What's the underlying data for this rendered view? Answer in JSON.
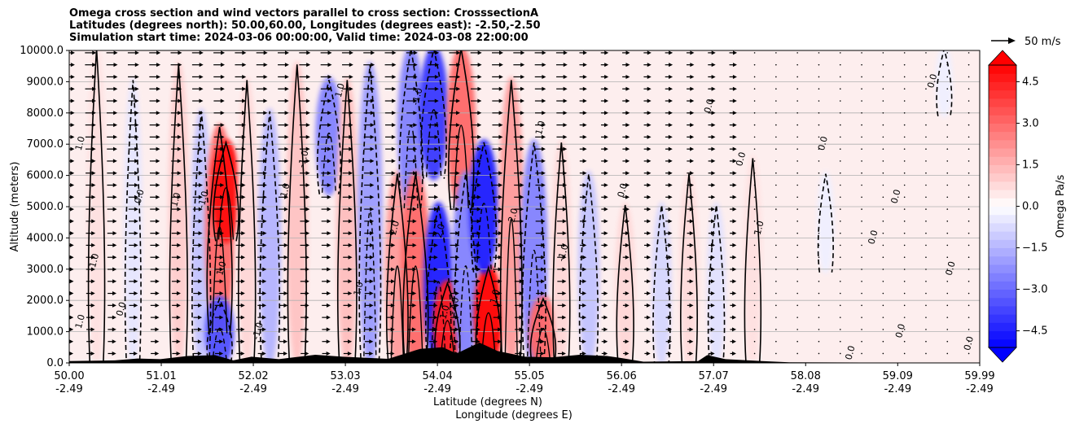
{
  "title_lines": [
    "Omega cross section and wind vectors parallel to cross section: CrosssectionA",
    "Latitudes (degrees north): 50.00,60.00, Longitudes (degrees east): -2.50,-2.50",
    "Simulation start time: 2024-03-06 00:00:00, Valid time: 2024-03-08 22:00:00"
  ],
  "chart_data": {
    "type": "heatmap",
    "title": "Omega cross section and wind vectors parallel to cross section: CrosssectionA",
    "xlabel_lat": "Latitude (degrees N)",
    "xlabel_lon": "Longitude (degrees E)",
    "ylabel": "Altitude (meters)",
    "xlim": [
      50.0,
      59.99
    ],
    "ylim": [
      0,
      10000
    ],
    "x_ticks": [
      {
        "lat": "50.00",
        "lon": "-2.49",
        "value": 50.0
      },
      {
        "lat": "51.01",
        "lon": "-2.49",
        "value": 51.01
      },
      {
        "lat": "52.02",
        "lon": "-2.49",
        "value": 52.02
      },
      {
        "lat": "53.03",
        "lon": "-2.49",
        "value": 53.03
      },
      {
        "lat": "54.04",
        "lon": "-2.49",
        "value": 54.04
      },
      {
        "lat": "55.05",
        "lon": "-2.49",
        "value": 55.05
      },
      {
        "lat": "56.06",
        "lon": "-2.49",
        "value": 56.06
      },
      {
        "lat": "57.07",
        "lon": "-2.49",
        "value": 57.07
      },
      {
        "lat": "58.08",
        "lon": "-2.49",
        "value": 58.08
      },
      {
        "lat": "59.09",
        "lon": "-2.49",
        "value": 59.09
      },
      {
        "lat": "59.99",
        "lon": "-2.49",
        "value": 59.99
      }
    ],
    "y_ticks": [
      {
        "label": "0.0",
        "value": 0
      },
      {
        "label": "1000.0",
        "value": 1000
      },
      {
        "label": "2000.0",
        "value": 2000
      },
      {
        "label": "3000.0",
        "value": 3000
      },
      {
        "label": "4000.0",
        "value": 4000
      },
      {
        "label": "5000.0",
        "value": 5000
      },
      {
        "label": "6000.0",
        "value": 6000
      },
      {
        "label": "7000.0",
        "value": 7000
      },
      {
        "label": "8000.0",
        "value": 8000
      },
      {
        "label": "9000.0",
        "value": 9000
      },
      {
        "label": "10000.0",
        "value": 10000
      }
    ],
    "grid": "horizontal",
    "colorbar": {
      "label": "Omega Pa/s",
      "range": [
        -5.1,
        5.1
      ],
      "ticks": [
        {
          "label": "4.5",
          "value": 4.5
        },
        {
          "label": "3.0",
          "value": 3.0
        },
        {
          "label": "1.5",
          "value": 1.5
        },
        {
          "label": "0.0",
          "value": 0.0
        },
        {
          "label": "−1.5",
          "value": -1.5
        },
        {
          "label": "−3.0",
          "value": -3.0
        },
        {
          "label": "−4.5",
          "value": -4.5
        }
      ],
      "extend": "both"
    },
    "vector_key": {
      "label": "50 m/s",
      "placement": "top-right"
    },
    "omega_features": [
      {
        "lat": 50.3,
        "alt_range": [
          0,
          10000
        ],
        "value": 0.6
      },
      {
        "lat": 50.7,
        "alt_range": [
          0,
          9000
        ],
        "value": -0.5
      },
      {
        "lat": 51.2,
        "alt_range": [
          0,
          9500
        ],
        "value": 1.0
      },
      {
        "lat": 51.45,
        "alt_range": [
          0,
          8000
        ],
        "value": -1.2
      },
      {
        "lat": 51.65,
        "alt_range": [
          1000,
          7500
        ],
        "value": 3.0
      },
      {
        "lat": 51.72,
        "alt_range": [
          4000,
          7000
        ],
        "value": 4.8
      },
      {
        "lat": 51.65,
        "alt_range": [
          0,
          2000
        ],
        "value": -3.5
      },
      {
        "lat": 51.95,
        "alt_range": [
          0,
          9000
        ],
        "value": 0.8
      },
      {
        "lat": 52.2,
        "alt_range": [
          0,
          8000
        ],
        "value": -1.5
      },
      {
        "lat": 52.5,
        "alt_range": [
          0,
          9500
        ],
        "value": 1.2
      },
      {
        "lat": 52.85,
        "alt_range": [
          5500,
          9000
        ],
        "value": -2.5
      },
      {
        "lat": 53.05,
        "alt_range": [
          0,
          9000
        ],
        "value": 1.3
      },
      {
        "lat": 53.3,
        "alt_range": [
          0,
          9500
        ],
        "value": -2.0
      },
      {
        "lat": 53.6,
        "alt_range": [
          0,
          6000
        ],
        "value": 2.0
      },
      {
        "lat": 53.75,
        "alt_range": [
          5000,
          10000
        ],
        "value": -2.5
      },
      {
        "lat": 53.8,
        "alt_range": [
          0,
          6000
        ],
        "value": 3.0
      },
      {
        "lat": 54.0,
        "alt_range": [
          6000,
          10000
        ],
        "value": -4.0
      },
      {
        "lat": 54.05,
        "alt_range": [
          0,
          5000
        ],
        "value": -4.5
      },
      {
        "lat": 54.15,
        "alt_range": [
          0,
          2500
        ],
        "value": 4.5
      },
      {
        "lat": 54.3,
        "alt_range": [
          5000,
          10000
        ],
        "value": 3.0
      },
      {
        "lat": 54.35,
        "alt_range": [
          0,
          6000
        ],
        "value": -2.5
      },
      {
        "lat": 54.6,
        "alt_range": [
          0,
          3000
        ],
        "value": 5.0
      },
      {
        "lat": 54.55,
        "alt_range": [
          3000,
          7000
        ],
        "value": -4.5
      },
      {
        "lat": 54.85,
        "alt_range": [
          0,
          9000
        ],
        "value": 2.0
      },
      {
        "lat": 55.1,
        "alt_range": [
          0,
          7000
        ],
        "value": -2.5
      },
      {
        "lat": 55.2,
        "alt_range": [
          0,
          2000
        ],
        "value": 3.0
      },
      {
        "lat": 55.4,
        "alt_range": [
          0,
          7000
        ],
        "value": 0.8
      },
      {
        "lat": 55.7,
        "alt_range": [
          0,
          6000
        ],
        "value": -1.2
      },
      {
        "lat": 56.1,
        "alt_range": [
          0,
          5000
        ],
        "value": 0.8
      },
      {
        "lat": 56.5,
        "alt_range": [
          0,
          5000
        ],
        "value": -0.8
      },
      {
        "lat": 56.8,
        "alt_range": [
          0,
          6000
        ],
        "value": 0.7
      },
      {
        "lat": 57.1,
        "alt_range": [
          0,
          5000
        ],
        "value": -0.6
      },
      {
        "lat": 57.5,
        "alt_range": [
          0,
          6500
        ],
        "value": 0.6
      },
      {
        "lat": 58.3,
        "alt_range": [
          3000,
          6000
        ],
        "value": -0.3
      },
      {
        "lat": 59.6,
        "alt_range": [
          8000,
          10000
        ],
        "value": -0.3
      }
    ],
    "contour_labels": [
      {
        "text": "1.0",
        "lat": 50.15,
        "alt": 7000
      },
      {
        "text": "1.0",
        "lat": 50.15,
        "alt": 1300
      },
      {
        "text": "0.0",
        "lat": 50.8,
        "alt": 5300
      },
      {
        "text": "-1.0",
        "lat": 50.3,
        "alt": 3200
      },
      {
        "text": "0.0",
        "lat": 50.6,
        "alt": 1700
      },
      {
        "text": "1.0",
        "lat": 51.2,
        "alt": 5200
      },
      {
        "text": "-1.0",
        "lat": 51.5,
        "alt": 5200
      },
      {
        "text": "1.0",
        "lat": 51.7,
        "alt": 3000
      },
      {
        "text": "-1.0",
        "lat": 52.1,
        "alt": 1000
      },
      {
        "text": "1.0",
        "lat": 52.4,
        "alt": 5500
      },
      {
        "text": "-1.0",
        "lat": 52.6,
        "alt": 6500
      },
      {
        "text": "1.0",
        "lat": 53.0,
        "alt": 8700
      },
      {
        "text": "-1.0",
        "lat": 53.2,
        "alt": 2300
      },
      {
        "text": "2.0",
        "lat": 53.6,
        "alt": 4300
      },
      {
        "text": "-1.0",
        "lat": 53.85,
        "alt": 8500
      },
      {
        "text": "2.0",
        "lat": 54.1,
        "alt": 4200
      },
      {
        "text": "-2.0",
        "lat": 54.25,
        "alt": 1800
      },
      {
        "text": "1.0",
        "lat": 54.15,
        "alt": 1600
      },
      {
        "text": "1.0",
        "lat": 54.7,
        "alt": 2100
      },
      {
        "text": "2.0",
        "lat": 54.9,
        "alt": 4700
      },
      {
        "text": "1.0",
        "lat": 55.2,
        "alt": 7500
      },
      {
        "text": "-1.0",
        "lat": 55.45,
        "alt": 3500
      },
      {
        "text": "0.0",
        "lat": 56.1,
        "alt": 5500
      },
      {
        "text": "0.0",
        "lat": 57.05,
        "alt": 8200
      },
      {
        "text": "1.0",
        "lat": 57.6,
        "alt": 4300
      },
      {
        "text": "0.0",
        "lat": 57.4,
        "alt": 6500
      },
      {
        "text": "0.0",
        "lat": 58.3,
        "alt": 7000
      },
      {
        "text": "0.0",
        "lat": 58.6,
        "alt": 300
      },
      {
        "text": "0.0",
        "lat": 59.1,
        "alt": 5300
      },
      {
        "text": "0.0",
        "lat": 58.85,
        "alt": 4000
      },
      {
        "text": "0.0",
        "lat": 59.15,
        "alt": 1000
      },
      {
        "text": "0.0",
        "lat": 59.5,
        "alt": 9000
      },
      {
        "text": "0.0",
        "lat": 59.7,
        "alt": 3000
      },
      {
        "text": "0.0",
        "lat": 59.9,
        "alt": 600
      }
    ],
    "terrain": [
      {
        "lat": 50.0,
        "alt": 60
      },
      {
        "lat": 50.5,
        "alt": 80
      },
      {
        "lat": 50.75,
        "alt": 140
      },
      {
        "lat": 51.0,
        "alt": 120
      },
      {
        "lat": 51.3,
        "alt": 220
      },
      {
        "lat": 51.6,
        "alt": 250
      },
      {
        "lat": 51.8,
        "alt": 80
      },
      {
        "lat": 52.0,
        "alt": 200
      },
      {
        "lat": 52.3,
        "alt": 120
      },
      {
        "lat": 52.7,
        "alt": 260
      },
      {
        "lat": 53.0,
        "alt": 200
      },
      {
        "lat": 53.5,
        "alt": 130
      },
      {
        "lat": 53.85,
        "alt": 450
      },
      {
        "lat": 54.1,
        "alt": 500
      },
      {
        "lat": 54.25,
        "alt": 300
      },
      {
        "lat": 54.5,
        "alt": 650
      },
      {
        "lat": 54.7,
        "alt": 380
      },
      {
        "lat": 55.0,
        "alt": 200
      },
      {
        "lat": 55.3,
        "alt": 180
      },
      {
        "lat": 55.6,
        "alt": 260
      },
      {
        "lat": 55.9,
        "alt": 220
      },
      {
        "lat": 56.05,
        "alt": 160
      },
      {
        "lat": 56.3,
        "alt": 40
      },
      {
        "lat": 56.9,
        "alt": 60
      },
      {
        "lat": 57.0,
        "alt": 250
      },
      {
        "lat": 57.2,
        "alt": 120
      },
      {
        "lat": 57.6,
        "alt": 60
      },
      {
        "lat": 57.9,
        "alt": 20
      },
      {
        "lat": 59.99,
        "alt": 0
      }
    ]
  }
}
